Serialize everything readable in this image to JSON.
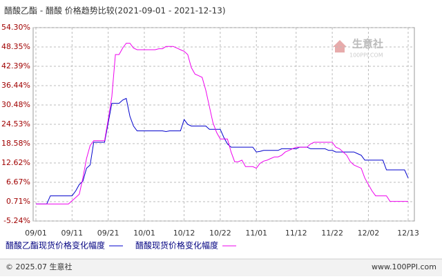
{
  "chart_data": {
    "type": "line",
    "title": "醋酸乙酯 - 醋酸 价格趋势比较(2021-09-01 - 2021-12-13)",
    "watermark": {
      "name": "生意社",
      "site": "100PPI.COM"
    },
    "footer": {
      "left": "© 2025.07 生意社",
      "right": "www.100PPI.com"
    },
    "categories": [
      "09/01",
      null,
      null,
      null,
      null,
      null,
      null,
      null,
      null,
      null,
      "09/11",
      null,
      null,
      null,
      null,
      null,
      null,
      null,
      null,
      null,
      "09/21",
      null,
      null,
      null,
      null,
      null,
      null,
      null,
      null,
      null,
      "10/01",
      null,
      null,
      null,
      null,
      null,
      null,
      null,
      null,
      null,
      null,
      "10/12",
      null,
      null,
      null,
      null,
      null,
      null,
      null,
      null,
      null,
      "10/22",
      null,
      null,
      null,
      null,
      null,
      null,
      null,
      null,
      null,
      "11/01",
      null,
      null,
      null,
      null,
      null,
      null,
      null,
      null,
      null,
      null,
      "11/12",
      null,
      null,
      null,
      null,
      null,
      null,
      null,
      null,
      null,
      "11/22",
      null,
      null,
      null,
      null,
      null,
      null,
      null,
      null,
      null,
      "12/02",
      null,
      null,
      null,
      null,
      null,
      null,
      null,
      null,
      null,
      null,
      "12/13"
    ],
    "series": [
      {
        "name": "醋酸乙酯现货价格变化幅度",
        "color": "#0000cc",
        "values": [
          0,
          0,
          0,
          0,
          2.5,
          2.5,
          2.5,
          2.5,
          2.5,
          2.5,
          2.5,
          4,
          6,
          7,
          11,
          12,
          19,
          19,
          19,
          19,
          25,
          31,
          31,
          31,
          32,
          32.5,
          27,
          24,
          22.5,
          22.5,
          22.5,
          22.5,
          22.5,
          22.5,
          22.5,
          22.5,
          22.3,
          22.5,
          22.5,
          22.5,
          22.5,
          26,
          24.5,
          24,
          24,
          24,
          24,
          24,
          23,
          23,
          23,
          23,
          20.5,
          18.5,
          17.5,
          17.5,
          17.5,
          17.5,
          17.5,
          17.5,
          17.5,
          16,
          16.2,
          16.5,
          16.5,
          16.5,
          16.5,
          16.5,
          17,
          17,
          17,
          17,
          17,
          17.5,
          17.5,
          17.5,
          17,
          17,
          17,
          17,
          17,
          16.5,
          16.5,
          16,
          16,
          16,
          16,
          16,
          16,
          15.5,
          15,
          13.5,
          13.5,
          13.5,
          13.5,
          13.5,
          13.5,
          10.5,
          10.5,
          10.5,
          10.5,
          10.5,
          10.5,
          8
        ]
      },
      {
        "name": "醋酸现货价格变化幅度",
        "color": "#ee00ee",
        "values": [
          0,
          0,
          0,
          0,
          0,
          0,
          0,
          0,
          0,
          0,
          1,
          2,
          3,
          8,
          14,
          18,
          19.5,
          19.5,
          19.5,
          19.5,
          26,
          33,
          46,
          46,
          48,
          49.5,
          49.5,
          48,
          47.5,
          47.5,
          47.5,
          47.5,
          47.5,
          47.5,
          47.8,
          47.8,
          48.5,
          48.5,
          48.5,
          48,
          47.5,
          47,
          46,
          42,
          40,
          39.5,
          39,
          35,
          30,
          25,
          22,
          20,
          20,
          20,
          16,
          13,
          13,
          13.5,
          11.5,
          11.5,
          11.5,
          11,
          12.5,
          13.2,
          13.5,
          14,
          14.5,
          14.5,
          15,
          16,
          16.5,
          17,
          17.5,
          17.5,
          17.5,
          17.5,
          18.5,
          19,
          19,
          19,
          19,
          19,
          19,
          17.5,
          17,
          16,
          15,
          13,
          12,
          11.5,
          11,
          8,
          6,
          4,
          2.5,
          2.5,
          2.5,
          2.5,
          0.8,
          0.8,
          0.8,
          0.8,
          0.8,
          0.8
        ]
      }
    ],
    "ylim": [
      -5.24,
      54.3
    ],
    "yticks": [
      {
        "value": -5.24,
        "label": "-5.24%"
      },
      {
        "value": 0.71,
        "label": "0.71%"
      },
      {
        "value": 6.67,
        "label": "6.67%"
      },
      {
        "value": 12.62,
        "label": "12.62%"
      },
      {
        "value": 18.58,
        "label": "18.58%"
      },
      {
        "value": 24.53,
        "label": "24.53%"
      },
      {
        "value": 30.48,
        "label": "30.48%"
      },
      {
        "value": 36.44,
        "label": "36.44%"
      },
      {
        "value": 42.39,
        "label": "42.39%"
      },
      {
        "value": 48.35,
        "label": "48.35%"
      },
      {
        "value": 54.3,
        "label": "54.30%"
      }
    ],
    "grid": true
  }
}
